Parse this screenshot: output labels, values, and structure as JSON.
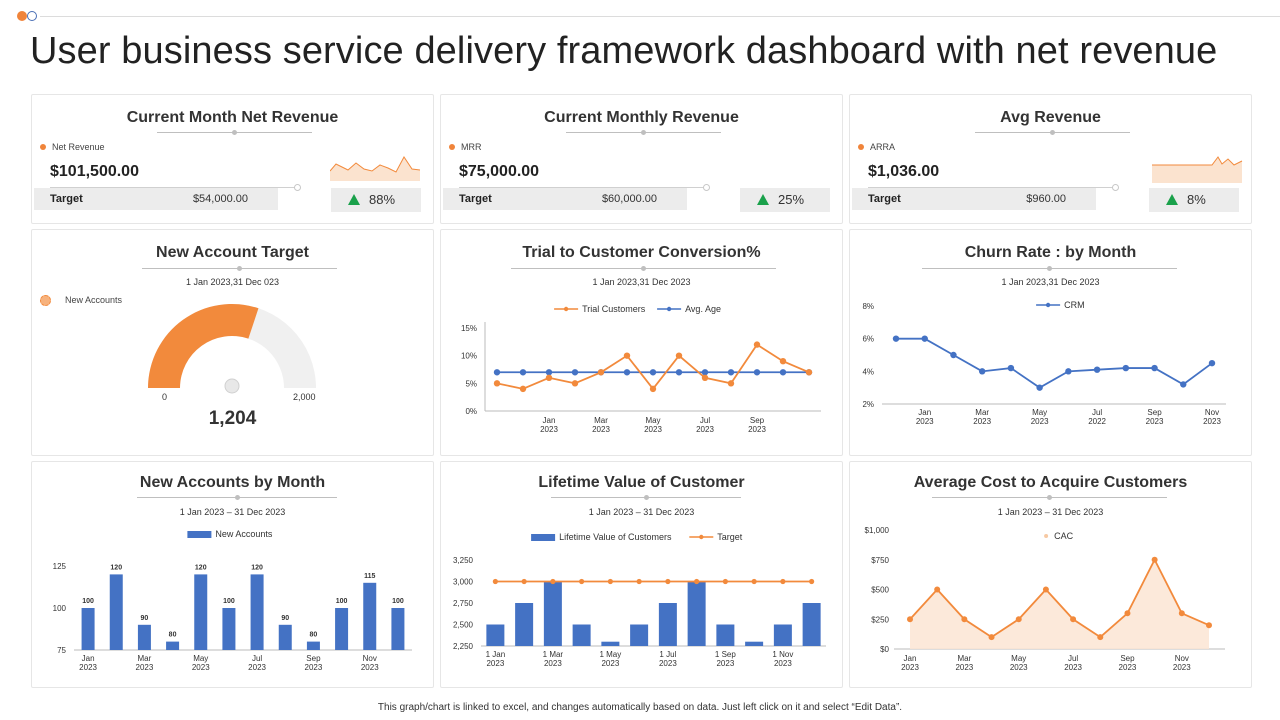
{
  "page": {
    "title": "User business service delivery framework dashboard with net revenue",
    "footer": "This graph/chart is linked to excel, and changes automatically based on data. Just left click on it and select “Edit Data”."
  },
  "kpis": [
    {
      "title": "Current Month Net Revenue",
      "legend": "Net Revenue",
      "value": "$101,500.00",
      "target_label": "Target",
      "target_value": "$54,000.00",
      "pct": "88%"
    },
    {
      "title": "Current Monthly Revenue",
      "legend": "MRR",
      "value": "$75,000.00",
      "target_label": "Target",
      "target_value": "$60,000.00",
      "pct": "25%"
    },
    {
      "title": "Avg Revenue",
      "legend": "ARRA",
      "value": "$1,036.00",
      "target_label": "Target",
      "target_value": "$960.00",
      "pct": "8%"
    }
  ],
  "colors": {
    "orange": "#f28a3c",
    "blue": "#4472c4",
    "green": "#1aa14b",
    "grey": "#f0f0f0"
  },
  "icons": [
    "trend-up-triangle-icon",
    "gauge-needle-icon"
  ],
  "new_account_target": {
    "title": "New Account Target",
    "date": "1 Jan 2023,31  Dec 023",
    "legend": "New Accounts",
    "min": "0",
    "max": "2,000",
    "value_text": "1,204",
    "fraction": 0.602
  },
  "chart_data": [
    {
      "type": "line",
      "title": "Trial to Customer Conversion%",
      "subtitle": "1 Jan 2023,31  Dec 2023",
      "x_labels": [
        "Jan\n2023",
        "Mar\n2023",
        "May\n2023",
        "Jul\n2023",
        "Sep\n2023"
      ],
      "y_ticks": [
        "0%",
        "5%",
        "10%",
        "15%"
      ],
      "ylim": [
        0,
        15
      ],
      "series": [
        {
          "name": "Trial Customers",
          "color": "#f28a3c",
          "values": [
            5,
            4,
            6,
            5,
            7,
            10,
            4,
            10,
            6,
            5,
            12,
            9,
            7
          ]
        },
        {
          "name": "Avg. Age",
          "color": "#4472c4",
          "values": [
            7,
            7,
            7,
            7,
            7,
            7,
            7,
            7,
            7,
            7,
            7,
            7,
            7
          ]
        }
      ]
    },
    {
      "type": "line",
      "title": "Churn Rate : by Month",
      "subtitle": "1 Jan 2023,31  Dec 2023",
      "x_labels": [
        "Jan\n2023",
        "Mar\n2023",
        "May\n2023",
        "Jul\n2022",
        "Sep\n2023",
        "Nov\n2023"
      ],
      "y_ticks": [
        "2%",
        "4%",
        "6%",
        "8%"
      ],
      "ylim": [
        2,
        8
      ],
      "series": [
        {
          "name": "CRM",
          "color": "#4472c4",
          "values": [
            6,
            6,
            5,
            4,
            4.2,
            3,
            4,
            4.1,
            4.2,
            4.2,
            3.2,
            4.5
          ]
        }
      ]
    },
    {
      "type": "bar",
      "title": "New Accounts by Month",
      "subtitle": "1 Jan 2023  – 31 Dec 2023",
      "x_labels": [
        "Jan\n2023",
        "Mar\n2023",
        "May\n2023",
        "Jul\n2023",
        "Sep\n2023",
        "Nov\n2023"
      ],
      "y_ticks": [
        "75",
        "100",
        "125"
      ],
      "ylim": [
        75,
        125
      ],
      "series": [
        {
          "name": "New Accounts",
          "color": "#4472c4",
          "values": [
            100,
            120,
            90,
            80,
            120,
            100,
            120,
            90,
            80,
            100,
            115,
            100
          ]
        }
      ]
    },
    {
      "type": "bar",
      "title": "Lifetime Value of Customer",
      "subtitle": "1 Jan 2023  – 31 Dec 2023",
      "x_labels": [
        "1 Jan\n2023",
        "1 Mar\n2023",
        "1 May\n2023",
        "1 Jul\n2023",
        "1 Sep\n2023",
        "1 Nov\n2023"
      ],
      "y_ticks": [
        "2,250",
        "2,500",
        "2,750",
        "3,000",
        "3,250"
      ],
      "ylim": [
        2250,
        3250
      ],
      "series": [
        {
          "name": "Lifetime Value of Customers",
          "color": "#4472c4",
          "values": [
            2500,
            2750,
            3000,
            2500,
            2300,
            2500,
            2750,
            3000,
            2500,
            2300,
            2500,
            2750
          ]
        },
        {
          "name": "Target",
          "color": "#f28a3c",
          "values": [
            3000,
            3000,
            3000,
            3000,
            3000,
            3000,
            3000,
            3000,
            3000,
            3000,
            3000,
            3000
          ]
        }
      ]
    },
    {
      "type": "area",
      "title": "Average Cost to Acquire Customers",
      "subtitle": "1 Jan 2023  – 31 Dec 2023",
      "x_labels": [
        "Jan\n2023",
        "Mar\n2023",
        "May\n2023",
        "Jul\n2023",
        "Sep\n2023",
        "Nov\n2023"
      ],
      "y_ticks": [
        "$0",
        "$250",
        "$500",
        "$750",
        "$1,000"
      ],
      "ylim": [
        0,
        1000
      ],
      "series": [
        {
          "name": "CAC",
          "color": "#f28a3c",
          "values": [
            250,
            500,
            250,
            100,
            250,
            500,
            250,
            100,
            300,
            750,
            300,
            200
          ]
        }
      ]
    }
  ]
}
